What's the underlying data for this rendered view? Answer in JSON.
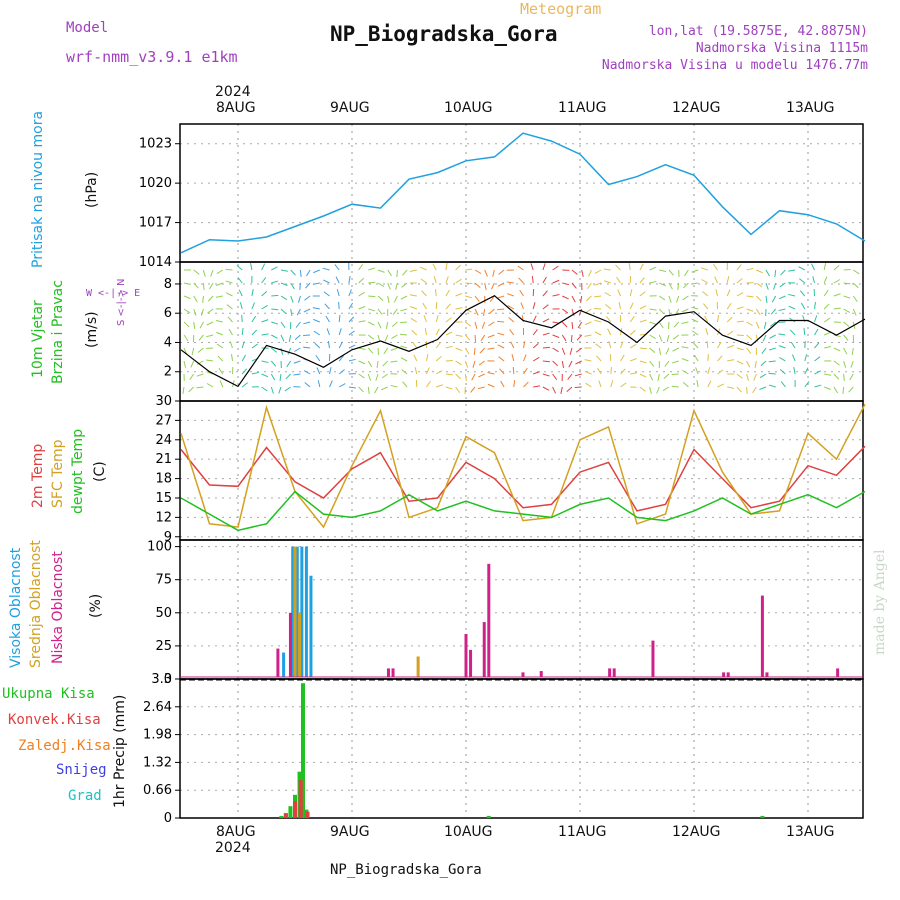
{
  "header": {
    "model_label": "Model",
    "model_name": "wrf-nmm_v3.9.1 e1km",
    "title": "NP_Biogradska_Gora",
    "subtitle": "Meteogram",
    "coords": "lon,lat (19.5875E, 42.8875N)",
    "elevation": "Nadmorska Visina 1115m",
    "model_elevation": "Nadmorska Visina u modelu 1476.77m"
  },
  "footer": {
    "station": "NP_Biogradska_Gora",
    "credit": "made by Angel"
  },
  "dates": {
    "year": "2024",
    "labels": [
      "8AUG",
      "9AUG",
      "10AUG",
      "11AUG",
      "12AUG",
      "13AUG"
    ]
  },
  "colors": {
    "pressure": "#20a0e0",
    "temp2m": "#e04040",
    "sfc": "#d4a020",
    "dewpt": "#20c020",
    "high_cloud": "#20a0e0",
    "mid_cloud": "#d4a020",
    "low_cloud": "#d0208a",
    "precip_total": "#20c020",
    "precip_conv": "#e04040",
    "precip_frozen": "#f08020",
    "precip_snow": "#4040e0",
    "precip_grad": "#20c0c0"
  },
  "chart_data": [
    {
      "type": "line",
      "panel": "pressure",
      "ylabel": "(hPa)",
      "side_label": "Pritisak na nivou mora",
      "ylim": [
        1014,
        1024.5
      ],
      "yticks": [
        1014,
        1017,
        1020,
        1023
      ],
      "x_days": [
        0,
        0.25,
        0.5,
        0.75,
        1,
        1.25,
        1.5,
        1.75,
        2,
        2.25,
        2.5,
        2.75,
        3,
        3.25,
        3.5,
        3.75,
        4,
        4.25,
        4.5,
        4.75,
        5,
        5.25,
        5.5,
        5.75,
        6
      ],
      "values": [
        1014.7,
        1015.7,
        1015.6,
        1015.9,
        1016.7,
        1017.5,
        1018.4,
        1018.1,
        1020.3,
        1020.8,
        1021.7,
        1022.0,
        1023.8,
        1023.2,
        1022.2,
        1019.9,
        1020.5,
        1021.4,
        1020.6,
        1018.2,
        1016.1,
        1017.9,
        1017.6,
        1016.9,
        1015.6
      ]
    },
    {
      "type": "line",
      "panel": "wind",
      "ylabel": "(m/s)",
      "side_label": "10m Vjetar Brzina i Pravac",
      "compass": "W <-|-> E",
      "compass_vertical": "S <-|-> N",
      "ylim": [
        0,
        9.5
      ],
      "yticks": [
        2,
        4,
        6,
        8
      ],
      "x_days": [
        0,
        0.25,
        0.5,
        0.75,
        1,
        1.25,
        1.5,
        1.75,
        2,
        2.25,
        2.5,
        2.75,
        3,
        3.25,
        3.5,
        3.75,
        4,
        4.25,
        4.5,
        4.75,
        5,
        5.25,
        5.5,
        5.75,
        6
      ],
      "values": [
        3.5,
        2.0,
        1.0,
        3.8,
        3.2,
        2.3,
        3.5,
        4.1,
        3.4,
        4.2,
        6.2,
        7.2,
        5.5,
        5.0,
        6.2,
        5.4,
        4.0,
        5.8,
        6.1,
        4.5,
        3.8,
        5.5,
        5.5,
        4.5,
        5.6
      ]
    },
    {
      "type": "line",
      "panel": "temperature",
      "ylabel": "(C)",
      "side_labels": [
        "2m Temp",
        "SFC Temp",
        "dewpt Temp"
      ],
      "ylim": [
        8.5,
        30
      ],
      "yticks": [
        9,
        12,
        15,
        18,
        21,
        24,
        27,
        30
      ],
      "series": [
        {
          "name": "2m Temp",
          "values": [
            22.5,
            17.0,
            16.8,
            22.8,
            17.5,
            15.0,
            19.5,
            22.0,
            14.5,
            15.0,
            20.5,
            18.0,
            13.5,
            14.0,
            19.0,
            20.5,
            13.0,
            14.0,
            22.5,
            18.0,
            13.5,
            14.5,
            20.0,
            18.5,
            23.0
          ]
        },
        {
          "name": "SFC Temp",
          "values": [
            25.0,
            11.0,
            10.5,
            29.0,
            16.0,
            10.5,
            20.0,
            28.5,
            12.0,
            13.5,
            24.5,
            22.0,
            11.5,
            12.0,
            24.0,
            26.0,
            11.0,
            12.5,
            28.5,
            19.0,
            12.5,
            13.0,
            25.0,
            21.0,
            29.5
          ]
        },
        {
          "name": "dewpt Temp",
          "values": [
            15.0,
            12.5,
            10.0,
            11.0,
            16.0,
            12.5,
            12.0,
            13.0,
            15.5,
            13.0,
            14.5,
            13.0,
            12.5,
            12.0,
            14.0,
            15.0,
            12.0,
            11.5,
            13.0,
            15.0,
            12.5,
            14.0,
            15.5,
            13.5,
            16.0
          ]
        }
      ],
      "x_days": [
        0,
        0.25,
        0.5,
        0.75,
        1,
        1.25,
        1.5,
        1.75,
        2,
        2.25,
        2.5,
        2.75,
        3,
        3.25,
        3.5,
        3.75,
        4,
        4.25,
        4.5,
        4.75,
        5,
        5.25,
        5.5,
        5.75,
        6
      ]
    },
    {
      "type": "bar",
      "panel": "cloud",
      "ylabel": "(%)",
      "side_labels": [
        "Visoka Oblacnost",
        "Srednja Oblacnost",
        "Niska Oblacnost"
      ],
      "ylim": [
        0,
        105
      ],
      "yticks": [
        0,
        25,
        50,
        75,
        100
      ],
      "bars": [
        {
          "series": "Visoka Oblacnost",
          "x_day": 0.4,
          "value": 20
        },
        {
          "series": "Visoka Oblacnost",
          "x_day": 0.48,
          "value": 100
        },
        {
          "series": "Visoka Oblacnost",
          "x_day": 0.52,
          "value": 100
        },
        {
          "series": "Visoka Oblacnost",
          "x_day": 0.56,
          "value": 100
        },
        {
          "series": "Visoka Oblacnost",
          "x_day": 0.6,
          "value": 100
        },
        {
          "series": "Visoka Oblacnost",
          "x_day": 0.64,
          "value": 78
        },
        {
          "series": "Srednja Oblacnost",
          "x_day": 0.5,
          "value": 100
        },
        {
          "series": "Srednja Oblacnost",
          "x_day": 0.54,
          "value": 50
        },
        {
          "series": "Srednja Oblacnost",
          "x_day": 1.58,
          "value": 17
        },
        {
          "series": "Niska Oblacnost",
          "x_day": 0.35,
          "value": 23
        },
        {
          "series": "Niska Oblacnost",
          "x_day": 0.46,
          "value": 50
        },
        {
          "series": "Niska Oblacnost",
          "x_day": 1.32,
          "value": 8
        },
        {
          "series": "Niska Oblacnost",
          "x_day": 1.36,
          "value": 8
        },
        {
          "series": "Niska Oblacnost",
          "x_day": 2.0,
          "value": 34
        },
        {
          "series": "Niska Oblacnost",
          "x_day": 2.04,
          "value": 22
        },
        {
          "series": "Niska Oblacnost",
          "x_day": 2.16,
          "value": 43
        },
        {
          "series": "Niska Oblacnost",
          "x_day": 2.2,
          "value": 87
        },
        {
          "series": "Niska Oblacnost",
          "x_day": 2.5,
          "value": 5
        },
        {
          "series": "Niska Oblacnost",
          "x_day": 2.66,
          "value": 6
        },
        {
          "series": "Niska Oblacnost",
          "x_day": 3.26,
          "value": 8
        },
        {
          "series": "Niska Oblacnost",
          "x_day": 3.3,
          "value": 8
        },
        {
          "series": "Niska Oblacnost",
          "x_day": 3.64,
          "value": 29
        },
        {
          "series": "Niska Oblacnost",
          "x_day": 4.26,
          "value": 5
        },
        {
          "series": "Niska Oblacnost",
          "x_day": 4.3,
          "value": 5
        },
        {
          "series": "Niska Oblacnost",
          "x_day": 4.6,
          "value": 63
        },
        {
          "series": "Niska Oblacnost",
          "x_day": 4.64,
          "value": 5
        },
        {
          "series": "Niska Oblacnost",
          "x_day": 5.26,
          "value": 8
        }
      ]
    },
    {
      "type": "bar",
      "panel": "precip",
      "ylabel": "1hr Precip (mm)",
      "side_labels": [
        "Ukupna Kisa",
        "Konvek.Kisa",
        "Zaledj.Kisa",
        "Snijeg",
        "Grad"
      ],
      "ylim": [
        0,
        3.3
      ],
      "yticks": [
        0,
        0.66,
        1.32,
        1.98,
        2.64,
        3.3
      ],
      "bars": [
        {
          "series": "Ukupna Kisa",
          "x_day": 0.38,
          "value": 0.05
        },
        {
          "series": "Ukupna Kisa",
          "x_day": 0.42,
          "value": 0.12
        },
        {
          "series": "Ukupna Kisa",
          "x_day": 0.46,
          "value": 0.28
        },
        {
          "series": "Ukupna Kisa",
          "x_day": 0.5,
          "value": 0.55
        },
        {
          "series": "Ukupna Kisa",
          "x_day": 0.54,
          "value": 1.1
        },
        {
          "series": "Ukupna Kisa",
          "x_day": 0.57,
          "value": 3.2
        },
        {
          "series": "Ukupna Kisa",
          "x_day": 0.6,
          "value": 0.2
        },
        {
          "series": "Ukupna Kisa",
          "x_day": 2.2,
          "value": 0.05
        },
        {
          "series": "Ukupna Kisa",
          "x_day": 4.6,
          "value": 0.05
        },
        {
          "series": "Konvek.Kisa",
          "x_day": 0.42,
          "value": 0.1
        },
        {
          "series": "Konvek.Kisa",
          "x_day": 0.5,
          "value": 0.4
        },
        {
          "series": "Konvek.Kisa",
          "x_day": 0.55,
          "value": 0.9
        },
        {
          "series": "Konvek.Kisa",
          "x_day": 0.61,
          "value": 0.15
        }
      ]
    }
  ]
}
